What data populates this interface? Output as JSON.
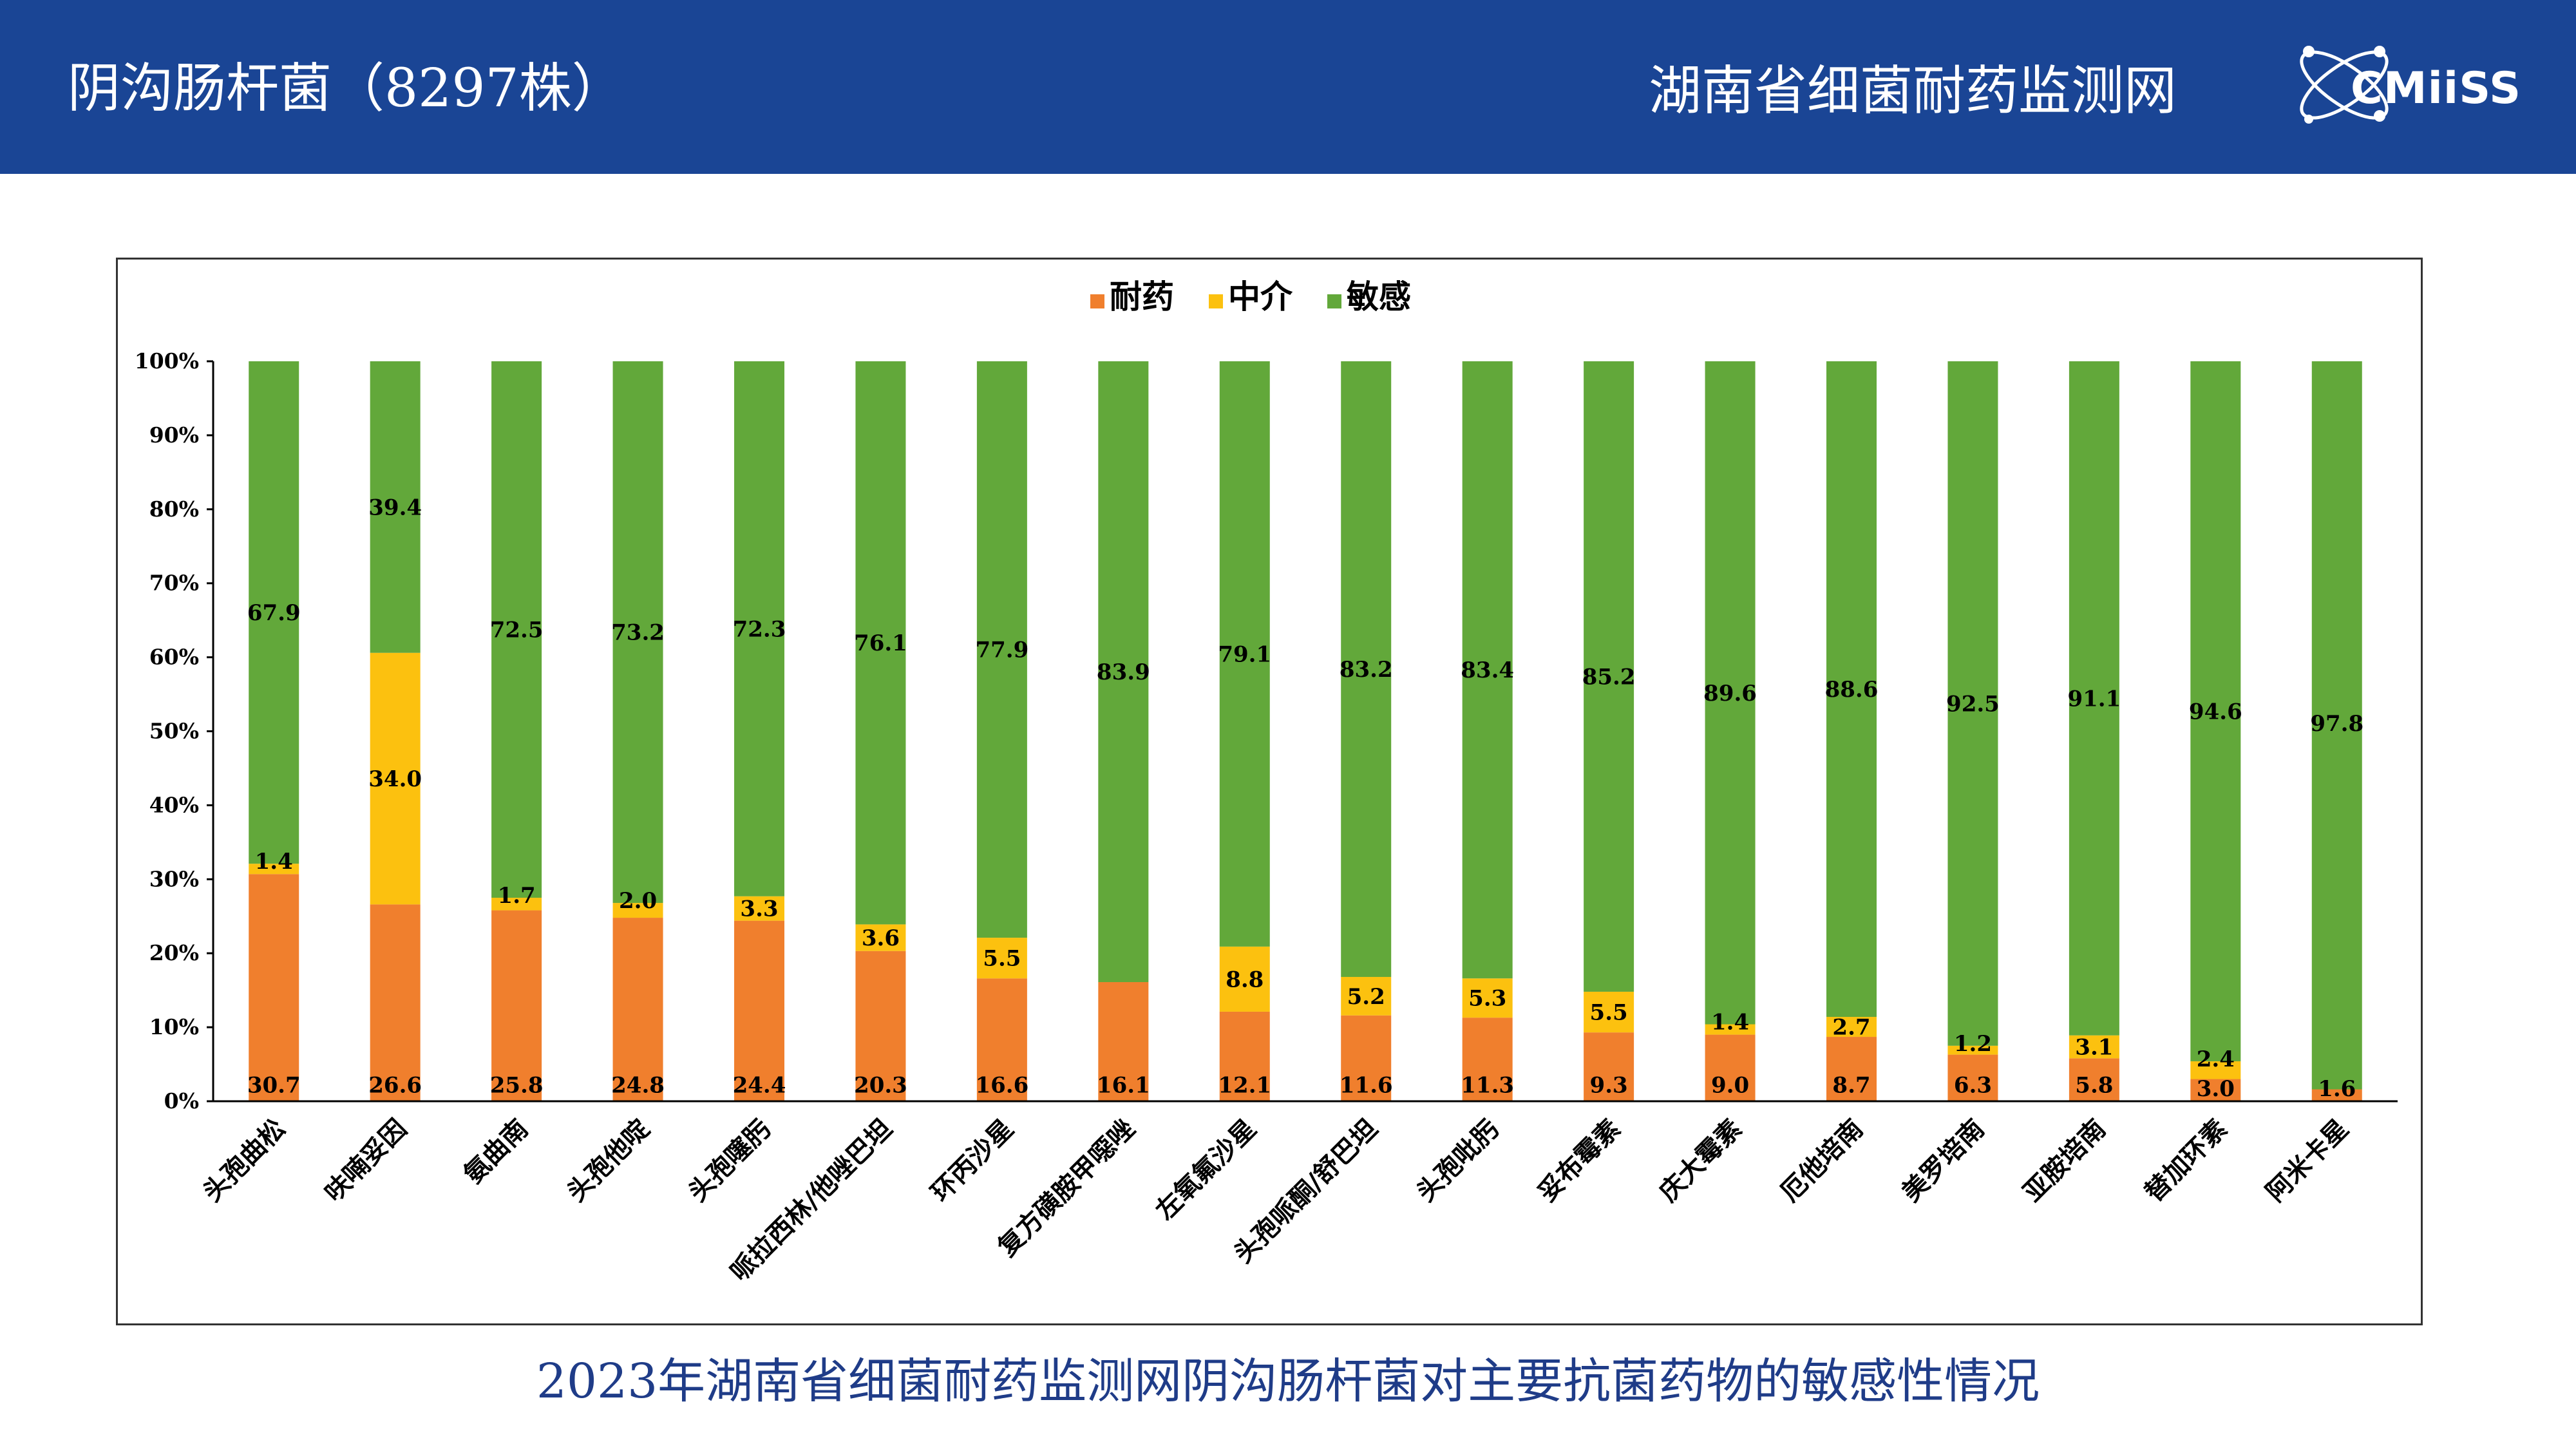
{
  "header": {
    "title": "阴沟肠杆菌（8297株）",
    "org": "湖南省细菌耐药监测网",
    "logo_text": "CMiiSS",
    "bg_color": "#1a4595"
  },
  "caption": "2023年湖南省细菌耐药监测网阴沟肠杆菌对主要抗菌药物的敏感性情况",
  "chart_data": {
    "type": "bar",
    "stacked": "percent",
    "legend_position": "top-center",
    "categories": [
      "头孢曲松",
      "呋喃妥因",
      "氨曲南",
      "头孢他啶",
      "头孢噻肟",
      "哌拉西林/他唑巴坦",
      "环丙沙星",
      "复方磺胺甲噁唑",
      "左氧氟沙星",
      "头孢哌酮/舒巴坦",
      "头孢吡肟",
      "妥布霉素",
      "庆大霉素",
      "厄他培南",
      "美罗培南",
      "亚胺培南",
      "替加环素",
      "阿米卡星"
    ],
    "series": [
      {
        "name": "耐药",
        "color": "#f07f2d",
        "values": [
          30.7,
          26.6,
          25.8,
          24.8,
          24.4,
          20.3,
          16.6,
          16.1,
          12.1,
          11.6,
          11.3,
          9.3,
          9.0,
          8.7,
          6.3,
          5.8,
          3.0,
          1.6
        ]
      },
      {
        "name": "中介",
        "color": "#fcc10f",
        "values": [
          1.4,
          34.0,
          1.7,
          2.0,
          3.3,
          3.6,
          5.5,
          null,
          8.8,
          5.2,
          5.3,
          5.5,
          1.4,
          2.7,
          1.2,
          3.1,
          2.4,
          null
        ]
      },
      {
        "name": "敏感",
        "color": "#62a83a",
        "values": [
          67.9,
          39.4,
          72.5,
          73.2,
          72.3,
          76.1,
          77.9,
          83.9,
          79.1,
          83.2,
          83.4,
          85.2,
          89.6,
          88.6,
          92.5,
          91.1,
          94.6,
          97.8
        ]
      }
    ],
    "y_ticks": [
      "0%",
      "10%",
      "20%",
      "30%",
      "40%",
      "50%",
      "60%",
      "70%",
      "80%",
      "90%",
      "100%"
    ],
    "ylim": [
      0,
      100
    ],
    "grid": false
  }
}
